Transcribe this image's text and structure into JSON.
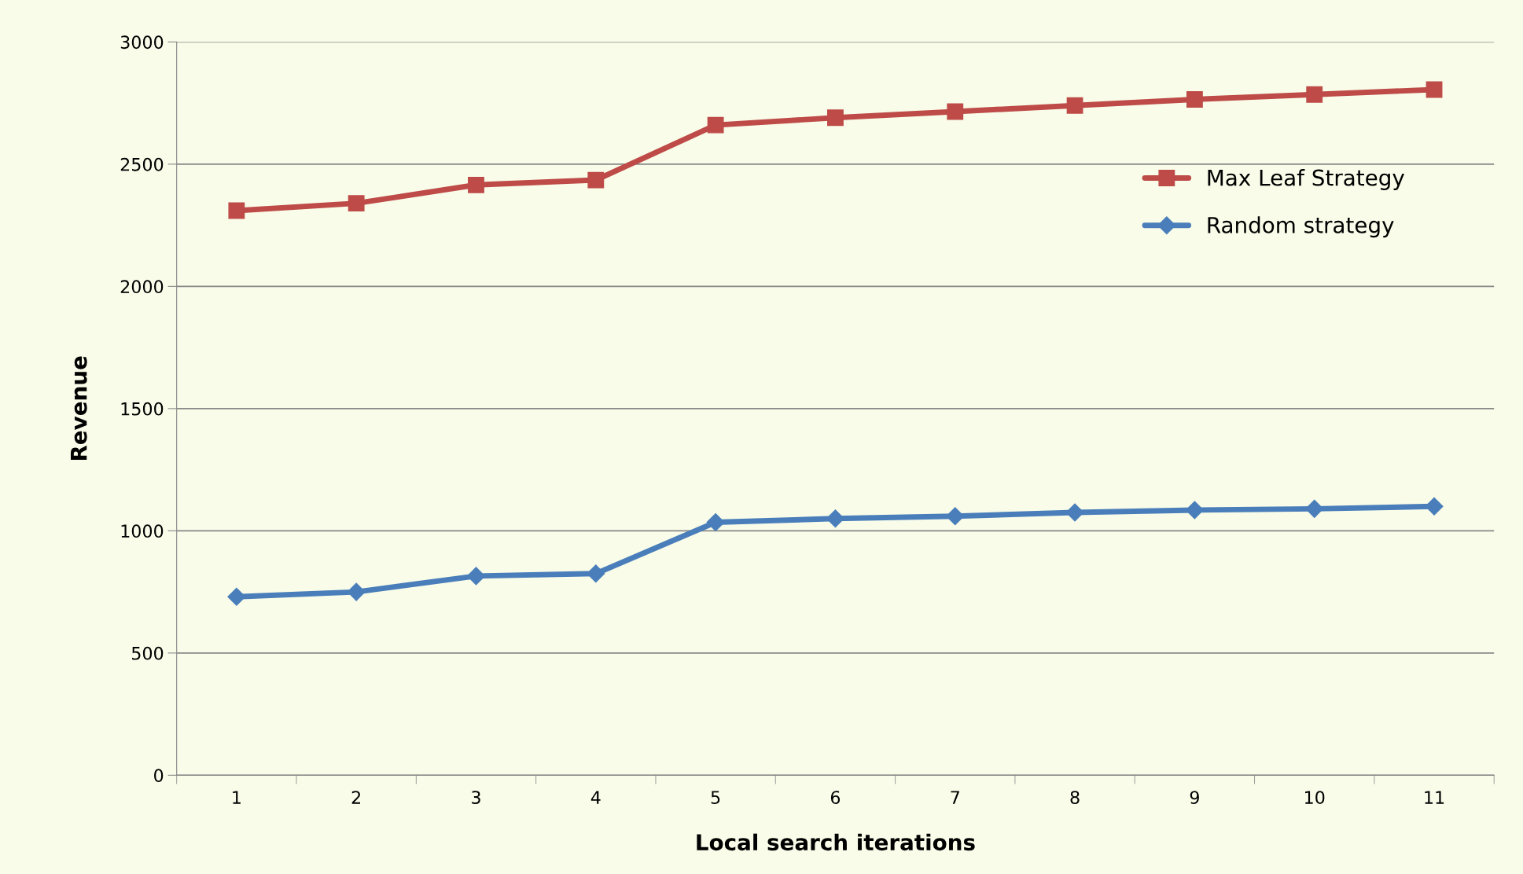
{
  "chart_data": {
    "type": "line",
    "xlabel": "Local search iterations",
    "ylabel": "Revenue",
    "categories": [
      "1",
      "2",
      "3",
      "4",
      "5",
      "6",
      "7",
      "8",
      "9",
      "10",
      "11"
    ],
    "series": [
      {
        "name": "Max Leaf Strategy",
        "color": "#be4b48",
        "marker": "square",
        "values": [
          2310,
          2340,
          2415,
          2435,
          2660,
          2690,
          2715,
          2740,
          2765,
          2785,
          2805
        ]
      },
      {
        "name": "Random strategy",
        "color": "#4a7ebb",
        "marker": "diamond",
        "values": [
          730,
          750,
          815,
          825,
          1035,
          1050,
          1060,
          1075,
          1085,
          1090,
          1100
        ]
      }
    ],
    "ylim": [
      0,
      3000
    ],
    "yticks": [
      0,
      500,
      1000,
      1500,
      2000,
      2500,
      3000
    ],
    "grid": "y",
    "legend": "right",
    "line_style": "solid"
  }
}
